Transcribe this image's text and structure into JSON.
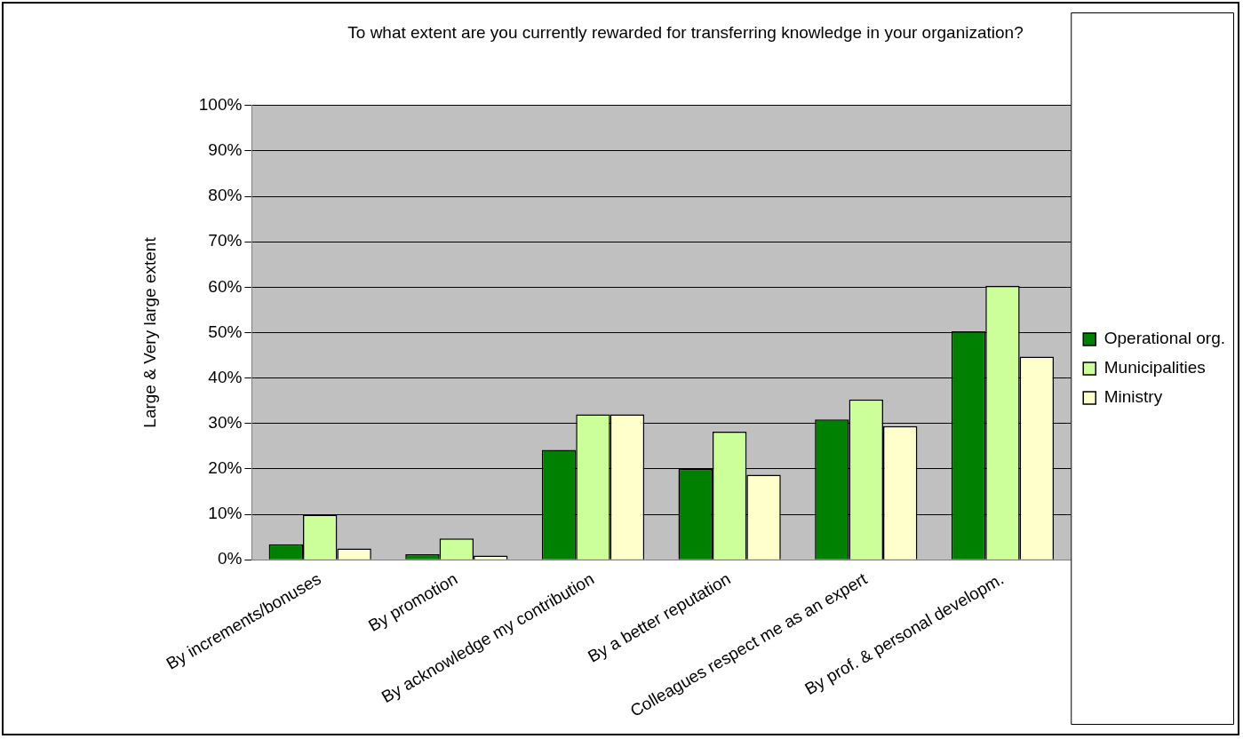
{
  "chart_data": {
    "type": "bar",
    "title": "To what extent are you currently rewarded for transferring knowledge in your organization?",
    "ylabel": "Large & Very large extent",
    "categories": [
      "By increments/bonuses",
      "By promotion",
      "By acknowledge my contribution",
      "By a better reputation",
      "Colleagues respect me as an expert",
      "By prof. & personal developm."
    ],
    "series": [
      {
        "name": "Operational org.",
        "color": "#008000",
        "values": [
          3.4,
          1.2,
          24.2,
          20,
          30.9,
          50.3
        ]
      },
      {
        "name": "Municipalities",
        "color": "#ccff99",
        "values": [
          9.9,
          4.7,
          32,
          28.2,
          35.3,
          60.3
        ]
      },
      {
        "name": "Ministry",
        "color": "#ffffcc",
        "values": [
          2.5,
          0.9,
          32,
          18.7,
          29.4,
          44.7
        ]
      }
    ],
    "ylim": [
      0,
      100
    ],
    "yticks": [
      {
        "value": 0,
        "label": "0%"
      },
      {
        "value": 10,
        "label": "10%"
      },
      {
        "value": 20,
        "label": "20%"
      },
      {
        "value": 30,
        "label": "30%"
      },
      {
        "value": 40,
        "label": "40%"
      },
      {
        "value": 50,
        "label": "50%"
      },
      {
        "value": 60,
        "label": "60%"
      },
      {
        "value": 70,
        "label": "70%"
      },
      {
        "value": 80,
        "label": "80%"
      },
      {
        "value": 90,
        "label": "90%"
      },
      {
        "value": 100,
        "label": "100%"
      }
    ],
    "grid": "y",
    "legend": "right"
  }
}
